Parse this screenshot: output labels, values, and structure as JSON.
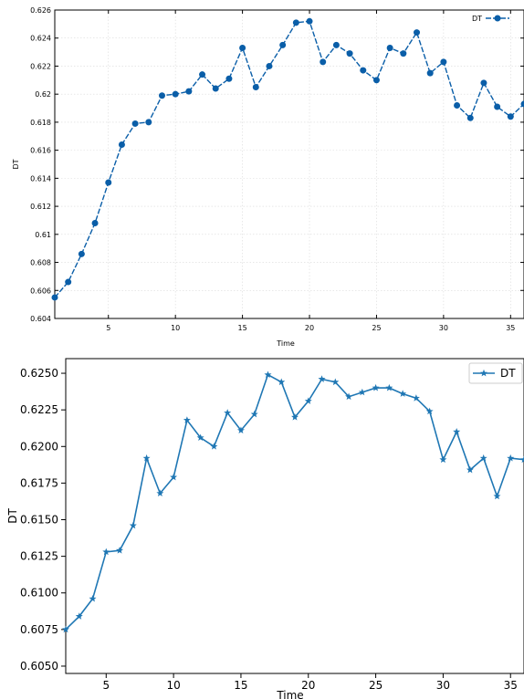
{
  "chart_data": [
    {
      "type": "line",
      "xlabel": "Time",
      "ylabel": "DT",
      "xlim": [
        1,
        36
      ],
      "ylim": [
        0.604,
        0.626
      ],
      "xticks": [
        5,
        10,
        15,
        20,
        25,
        30,
        35
      ],
      "yticks": [
        0.604,
        0.606,
        0.608,
        0.61,
        0.612,
        0.614,
        0.616,
        0.618,
        0.62,
        0.622,
        0.624,
        0.626
      ],
      "ytick_labels": [
        "0.604",
        "0.606",
        "0.608",
        "0.61",
        "0.612",
        "0.614",
        "0.616",
        "0.618",
        "0.62",
        "0.622",
        "0.624",
        "0.626"
      ],
      "grid": true,
      "legend_position": "top-right",
      "series": [
        {
          "name": "DT",
          "color": "#0a5ea8",
          "line_style": "dashed",
          "marker": "circle",
          "x": [
            1,
            2,
            3,
            4,
            5,
            6,
            7,
            8,
            9,
            10,
            11,
            12,
            13,
            14,
            15,
            16,
            17,
            18,
            19,
            20,
            21,
            22,
            23,
            24,
            25,
            26,
            27,
            28,
            29,
            30,
            31,
            32,
            33,
            34,
            35,
            36
          ],
          "y": [
            0.6055,
            0.6066,
            0.6086,
            0.6108,
            0.6137,
            0.6164,
            0.6179,
            0.618,
            0.6199,
            0.62,
            0.6202,
            0.6214,
            0.6204,
            0.6211,
            0.6233,
            0.6205,
            0.622,
            0.6235,
            0.6251,
            0.6252,
            0.6223,
            0.6235,
            0.6229,
            0.6217,
            0.621,
            0.6233,
            0.6229,
            0.6244,
            0.6215,
            0.6223,
            0.6192,
            0.6183,
            0.6208,
            0.6191,
            0.6184,
            0.6193
          ]
        }
      ]
    },
    {
      "type": "line",
      "xlabel": "Time",
      "ylabel": "DT",
      "xlim": [
        2,
        36
      ],
      "ylim": [
        0.6045,
        0.626
      ],
      "xticks": [
        5,
        10,
        15,
        20,
        25,
        30,
        35
      ],
      "yticks": [
        0.605,
        0.6075,
        0.61,
        0.6125,
        0.615,
        0.6175,
        0.62,
        0.6225,
        0.625
      ],
      "ytick_labels": [
        "0.6050",
        "0.6075",
        "0.6100",
        "0.6125",
        "0.6150",
        "0.6175",
        "0.6200",
        "0.6225",
        "0.6250"
      ],
      "grid": false,
      "legend_position": "top-right",
      "series": [
        {
          "name": "DT",
          "color": "#1f77b4",
          "line_style": "solid",
          "marker": "star",
          "x": [
            2,
            3,
            4,
            5,
            6,
            7,
            8,
            9,
            10,
            11,
            12,
            13,
            14,
            15,
            16,
            17,
            18,
            19,
            20,
            21,
            22,
            23,
            24,
            25,
            26,
            27,
            28,
            29,
            30,
            31,
            32,
            33,
            34,
            35,
            36
          ],
          "y": [
            0.6075,
            0.6084,
            0.6096,
            0.6128,
            0.6129,
            0.6146,
            0.6192,
            0.6168,
            0.6179,
            0.6218,
            0.6206,
            0.62,
            0.6223,
            0.6211,
            0.6222,
            0.6249,
            0.6244,
            0.622,
            0.6231,
            0.6246,
            0.6244,
            0.6234,
            0.6237,
            0.624,
            0.624,
            0.6236,
            0.6233,
            0.6224,
            0.6191,
            0.621,
            0.6184,
            0.6192,
            0.6166,
            0.6192,
            0.6191
          ]
        }
      ]
    }
  ]
}
